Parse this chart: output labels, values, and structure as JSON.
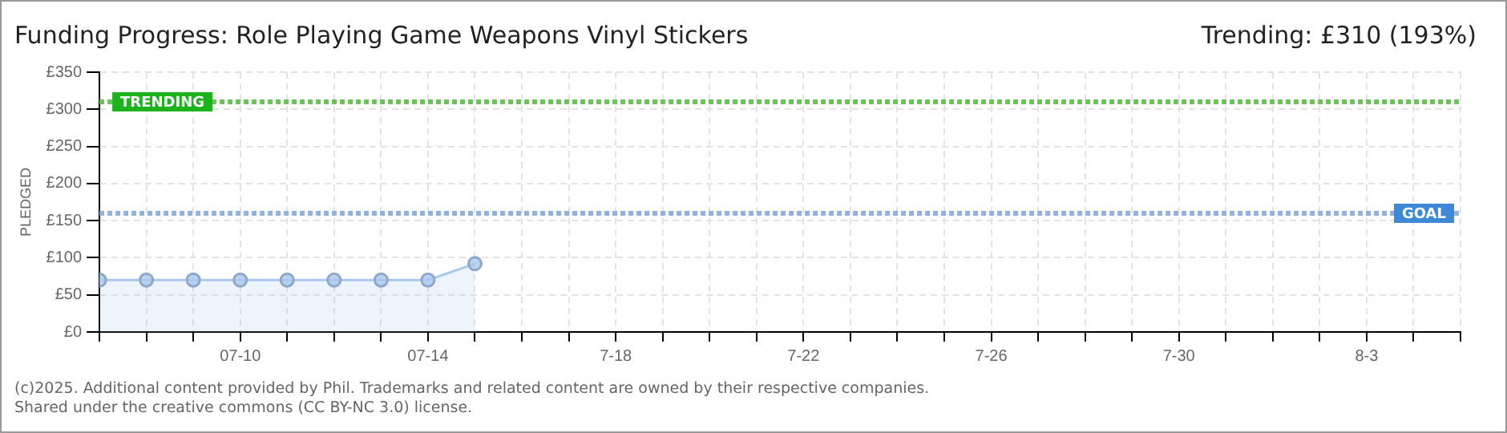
{
  "chart_data": {
    "type": "area",
    "title": "Funding Progress: Role Playing Game Weapons Vinyl Stickers",
    "subtitle": "Trending: £310 (193%)",
    "ylabel": "PLEDGED",
    "annotations": [
      "(c)2025. Additional content provided by Phil. Trademarks and related content are owned by their respective companies.",
      "Shared under the creative commons (CC BY-NC 3.0) license."
    ],
    "x": [
      "--07-07",
      "--07-08",
      "--07-09",
      "--07-10",
      "--07-11",
      "--07-12",
      "--07-13",
      "--07-14",
      "--07-15"
    ],
    "series": [
      {
        "color": "#a9c8ee",
        "values": [
          70,
          70,
          70,
          70,
          70,
          70,
          70,
          70,
          92
        ]
      }
    ],
    "marker": "circle",
    "grid": true,
    "legend": false,
    "ylim": [
      0,
      350
    ],
    "yticks": [
      {
        "value": 0,
        "label": "£0"
      },
      {
        "value": 50,
        "label": "£50"
      },
      {
        "value": 100,
        "label": "£100"
      },
      {
        "value": 150,
        "label": "£150"
      },
      {
        "value": 200,
        "label": "£200"
      },
      {
        "value": 250,
        "label": "£250"
      },
      {
        "value": 300,
        "label": "£300"
      },
      {
        "value": 350,
        "label": "£350"
      }
    ],
    "xlim": [
      "--07-07",
      "--08-05"
    ],
    "xticks": [
      {
        "value": "--07-07",
        "label": null
      },
      {
        "value": "--07-08",
        "label": null
      },
      {
        "value": "--07-09",
        "label": null
      },
      {
        "value": "--07-10",
        "label": "07-10"
      },
      {
        "value": "--07-11",
        "label": null
      },
      {
        "value": "--07-12",
        "label": null
      },
      {
        "value": "--07-13",
        "label": null
      },
      {
        "value": "--07-14",
        "label": "07-14"
      },
      {
        "value": "--07-15",
        "label": null
      },
      {
        "value": "--07-16",
        "label": null
      },
      {
        "value": "--07-17",
        "label": null
      },
      {
        "value": "--07-18",
        "label": "7-18"
      },
      {
        "value": "--07-19",
        "label": null
      },
      {
        "value": "--07-20",
        "label": null
      },
      {
        "value": "--07-21",
        "label": null
      },
      {
        "value": "--07-22",
        "label": "7-22"
      },
      {
        "value": "--07-23",
        "label": null
      },
      {
        "value": "--07-24",
        "label": null
      },
      {
        "value": "--07-25",
        "label": null
      },
      {
        "value": "--07-26",
        "label": "7-26"
      },
      {
        "value": "--07-27",
        "label": null
      },
      {
        "value": "--07-28",
        "label": null
      },
      {
        "value": "--07-29",
        "label": null
      },
      {
        "value": "--07-30",
        "label": "7-30"
      },
      {
        "value": "--07-31",
        "label": null
      },
      {
        "value": "--08-01",
        "label": null
      },
      {
        "value": "--08-02",
        "label": null
      },
      {
        "value": "--08-03",
        "label": "8-3"
      },
      {
        "value": "--08-04",
        "label": null
      },
      {
        "value": "--08-05",
        "label": null
      }
    ],
    "ref_lines": [
      {
        "axis": "y",
        "value": 310,
        "label": "TRENDING",
        "color": "#6cc35a",
        "line_style": "dotted"
      },
      {
        "axis": "y",
        "value": 160,
        "label": "GOAL",
        "color": "#8fb2e0",
        "line_style": "dotted"
      }
    ]
  }
}
